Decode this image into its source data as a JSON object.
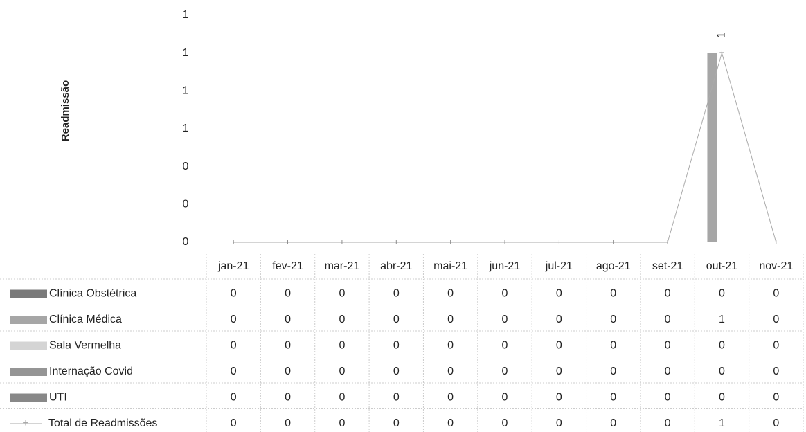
{
  "chart_data": {
    "type": "bar",
    "y_label": "Readmissão",
    "categories": [
      "jan-21",
      "fev-21",
      "mar-21",
      "abr-21",
      "mai-21",
      "jun-21",
      "jul-21",
      "ago-21",
      "set-21",
      "out-21",
      "nov-21"
    ],
    "ylim": [
      0,
      1.2
    ],
    "yticks": [
      {
        "value": 0,
        "label": "0"
      },
      {
        "value": 0.2,
        "label": "0"
      },
      {
        "value": 0.4,
        "label": "0"
      },
      {
        "value": 0.6,
        "label": "1"
      },
      {
        "value": 0.8,
        "label": "1"
      },
      {
        "value": 1,
        "label": "1"
      },
      {
        "value": 1.2,
        "label": "1"
      }
    ],
    "series": [
      {
        "name": "Clínica Obstétrica",
        "type": "bar",
        "color": "#7a7a7a",
        "values": [
          0,
          0,
          0,
          0,
          0,
          0,
          0,
          0,
          0,
          0,
          0
        ]
      },
      {
        "name": "Clínica Médica",
        "type": "bar",
        "color": "#a6a6a6",
        "values": [
          0,
          0,
          0,
          0,
          0,
          0,
          0,
          0,
          0,
          1,
          0
        ]
      },
      {
        "name": "Sala Vermelha",
        "type": "bar",
        "color": "#d4d4d4",
        "values": [
          0,
          0,
          0,
          0,
          0,
          0,
          0,
          0,
          0,
          0,
          0
        ]
      },
      {
        "name": "Internação Covid",
        "type": "bar",
        "color": "#959595",
        "values": [
          0,
          0,
          0,
          0,
          0,
          0,
          0,
          0,
          0,
          0,
          0
        ]
      },
      {
        "name": "UTI",
        "type": "bar",
        "color": "#888888",
        "values": [
          0,
          0,
          0,
          0,
          0,
          0,
          0,
          0,
          0,
          0,
          0
        ]
      },
      {
        "name": "Total de Readmissões",
        "type": "line",
        "color": "#aaaaaa",
        "values": [
          0,
          0,
          0,
          0,
          0,
          0,
          0,
          0,
          0,
          1,
          0
        ],
        "value_labels": [
          null,
          null,
          null,
          null,
          null,
          null,
          null,
          null,
          null,
          "1",
          null
        ]
      }
    ]
  }
}
